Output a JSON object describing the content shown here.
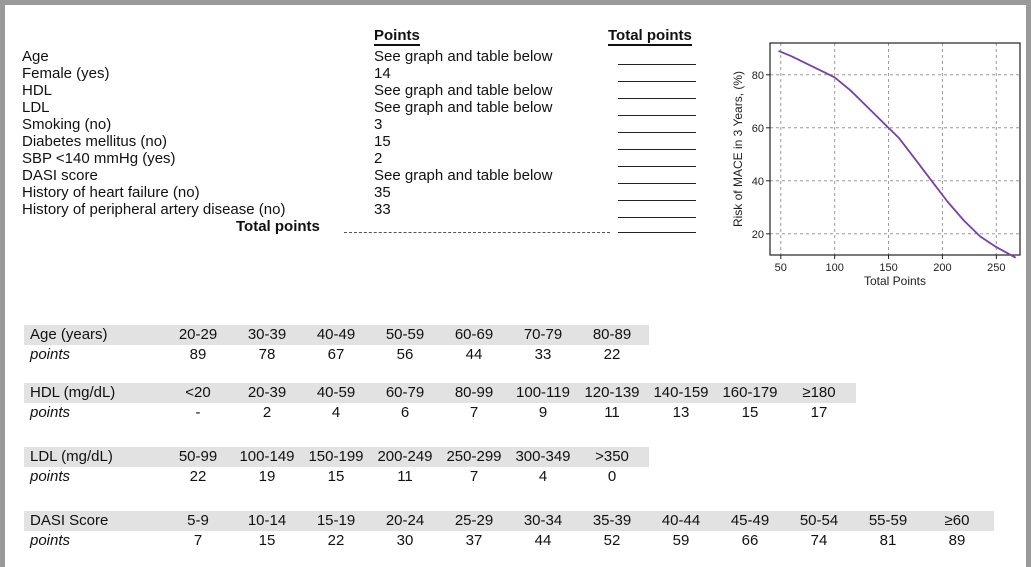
{
  "score_sheet": {
    "col_points": "Points",
    "col_total": "Total points",
    "rows": [
      {
        "label": "Age",
        "points": "See graph and table below"
      },
      {
        "label": "Female (yes)",
        "points": "14"
      },
      {
        "label": "HDL",
        "points": "See graph and table below"
      },
      {
        "label": "LDL",
        "points": "See graph and table below"
      },
      {
        "label": "Smoking (no)",
        "points": "3"
      },
      {
        "label": "Diabetes mellitus (no)",
        "points": "15"
      },
      {
        "label": "SBP <140 mmHg (yes)",
        "points": "2"
      },
      {
        "label": "DASI score",
        "points": "See graph and table below"
      },
      {
        "label": "History of heart failure (no)",
        "points": "35"
      },
      {
        "label": "History of peripheral artery disease (no)",
        "points": "33"
      }
    ],
    "total_label": "Total points"
  },
  "tables": [
    {
      "header": "Age (years)",
      "row_label": "points",
      "ranges": [
        "20-29",
        "30-39",
        "40-49",
        "50-59",
        "60-69",
        "70-79",
        "80-89"
      ],
      "points": [
        "89",
        "78",
        "67",
        "56",
        "44",
        "33",
        "22"
      ]
    },
    {
      "header": "HDL (mg/dL)",
      "row_label": "points",
      "ranges": [
        "<20",
        "20-39",
        "40-59",
        "60-79",
        "80-99",
        "100-119",
        "120-139",
        "140-159",
        "160-179",
        "≥180"
      ],
      "points": [
        "-",
        "2",
        "4",
        "6",
        "7",
        "9",
        "11",
        "13",
        "15",
        "17"
      ]
    },
    {
      "header": "LDL (mg/dL)",
      "row_label": "points",
      "ranges": [
        "50-99",
        "100-149",
        "150-199",
        "200-249",
        "250-299",
        "300-349",
        ">350"
      ],
      "points": [
        "22",
        "19",
        "15",
        "11",
        "7",
        "4",
        "0"
      ]
    },
    {
      "header": "DASI Score",
      "row_label": "points",
      "ranges": [
        "5-9",
        "10-14",
        "15-19",
        "20-24",
        "25-29",
        "30-34",
        "35-39",
        "40-44",
        "45-49",
        "50-54",
        "55-59",
        "≥60"
      ],
      "points": [
        "7",
        "15",
        "22",
        "30",
        "37",
        "44",
        "52",
        "59",
        "66",
        "74",
        "81",
        "89"
      ]
    }
  ],
  "chart_data": {
    "type": "line",
    "xlabel": "Total Points",
    "ylabel": "Risk of MACE in 3 Years, (%)",
    "xlim": [
      40,
      272
    ],
    "ylim": [
      12,
      92
    ],
    "xticks": [
      50,
      100,
      150,
      200,
      250
    ],
    "yticks": [
      20,
      40,
      60,
      80
    ],
    "grid": true,
    "series": [
      {
        "color": "#7b3fa6",
        "x": [
          48,
          60,
          75,
          90,
          100,
          115,
          130,
          145,
          160,
          175,
          190,
          205,
          220,
          235,
          250,
          268
        ],
        "y": [
          89,
          87,
          84,
          81,
          79,
          74,
          68,
          62,
          56,
          48,
          40,
          32,
          25,
          19,
          15,
          11
        ]
      }
    ]
  }
}
